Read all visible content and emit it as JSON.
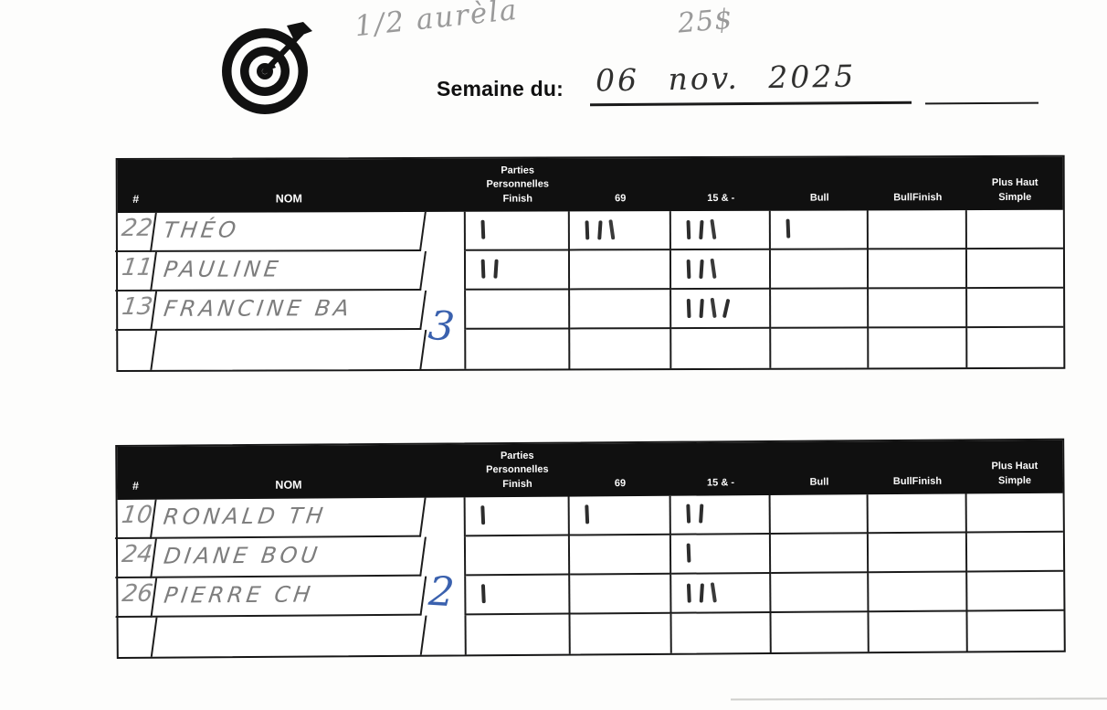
{
  "header": {
    "pencil_note": "1/2 aurèla",
    "pencil_amount": "25$",
    "week_label": "Semaine du:",
    "week_value": "06 nov. 2025"
  },
  "columns": [
    "#",
    "NOM",
    "",
    "Parties\nPersonnelles\nFinish",
    "69",
    "15 & -",
    "Bull",
    "BullFinish",
    "Plus Haut\nSimple"
  ],
  "tables": [
    {
      "group_score": "3",
      "rows": [
        {
          "num": "22",
          "name": "THÉO",
          "finish": 1,
          "c69": 3,
          "c15": 3,
          "bull": 1,
          "bullfinish": 0,
          "plus": 0
        },
        {
          "num": "11",
          "name": "PAULINE",
          "finish": 2,
          "c69": 0,
          "c15": 3,
          "bull": 0,
          "bullfinish": 0,
          "plus": 0
        },
        {
          "num": "13",
          "name": "FRANCINE BA",
          "finish": 0,
          "c69": 0,
          "c15": 4,
          "bull": 0,
          "bullfinish": 0,
          "plus": 0
        },
        {
          "num": "",
          "name": "",
          "finish": 0,
          "c69": 0,
          "c15": 0,
          "bull": 0,
          "bullfinish": 0,
          "plus": 0
        }
      ]
    },
    {
      "group_score": "2",
      "rows": [
        {
          "num": "10",
          "name": "RONALD TH",
          "finish": 1,
          "c69": 1,
          "c15": 2,
          "bull": 0,
          "bullfinish": 0,
          "plus": 0
        },
        {
          "num": "24",
          "name": "DIANE BOU",
          "finish": 0,
          "c69": 0,
          "c15": 1,
          "bull": 0,
          "bullfinish": 0,
          "plus": 0
        },
        {
          "num": "26",
          "name": "PIERRE CH",
          "finish": 1,
          "c69": 0,
          "c15": 3,
          "bull": 0,
          "bullfinish": 0,
          "plus": 0
        },
        {
          "num": "",
          "name": "",
          "finish": 0,
          "c69": 0,
          "c15": 0,
          "bull": 0,
          "bullfinish": 0,
          "plus": 0
        }
      ]
    }
  ],
  "colors": {
    "ink": "#30302f",
    "pencil": "#9a9a9a",
    "blue_pen": "#3a61ae",
    "table_header_bg": "#101010"
  }
}
